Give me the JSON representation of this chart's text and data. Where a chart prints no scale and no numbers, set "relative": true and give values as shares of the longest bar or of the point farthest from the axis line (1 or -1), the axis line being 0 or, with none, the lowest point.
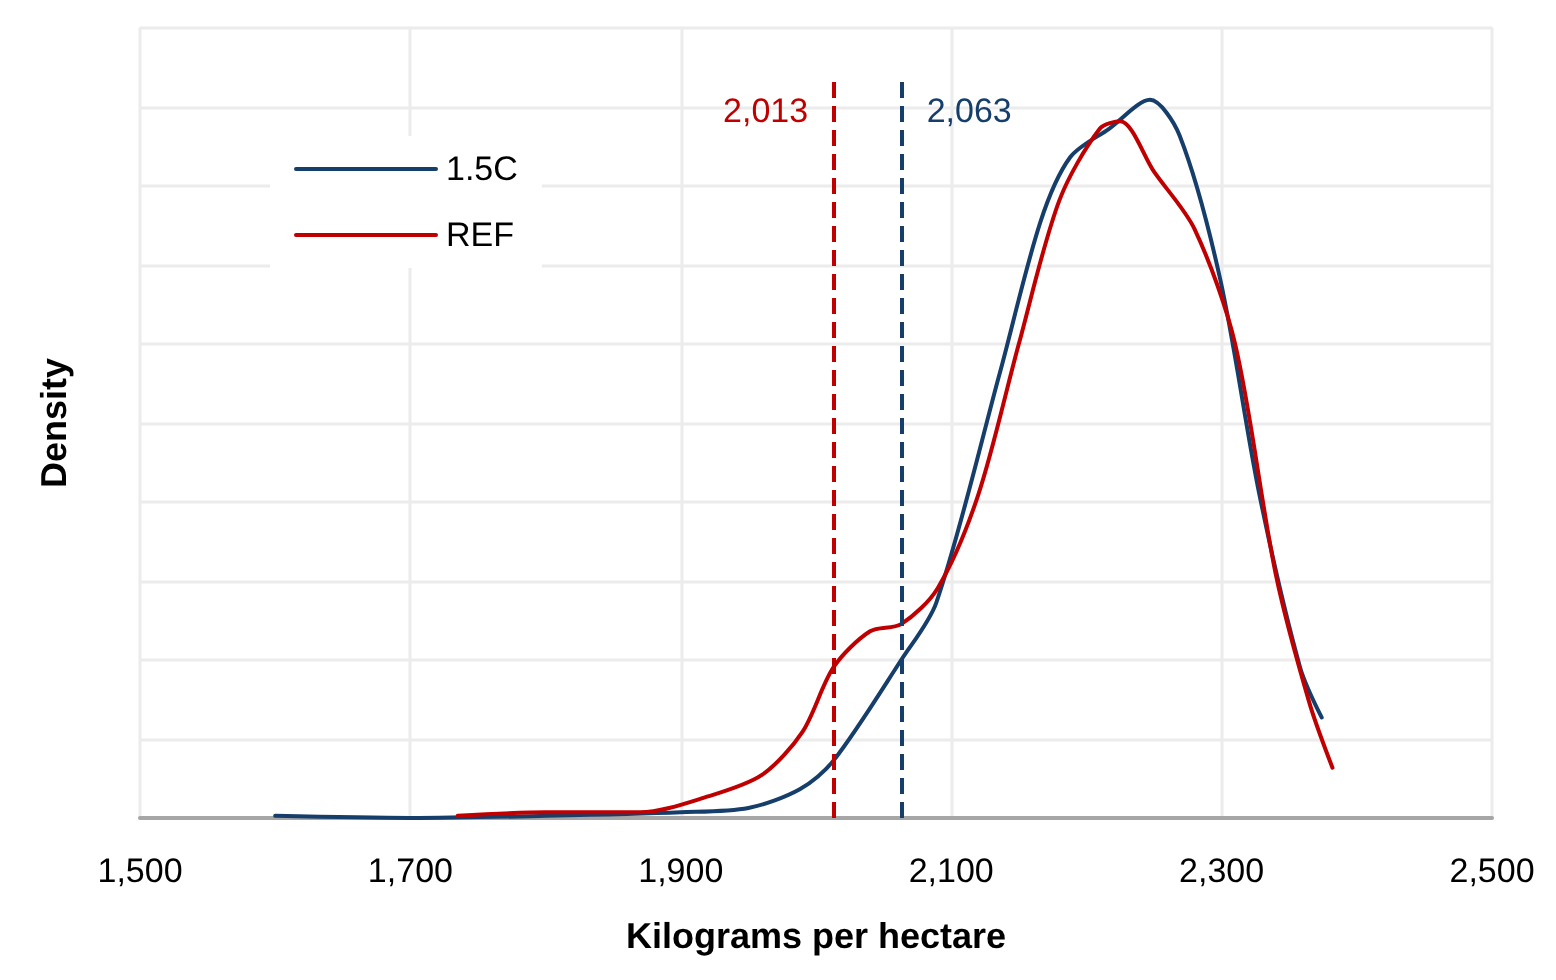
{
  "chart_data": {
    "type": "line",
    "xlabel": "Kilograms per hectare",
    "ylabel": "Density",
    "relative": true,
    "xlim": [
      1500,
      2500
    ],
    "xticks": [
      {
        "value": 1500,
        "label": "1,500"
      },
      {
        "value": 1700,
        "label": "1,700"
      },
      {
        "value": 1900,
        "label": "1,900"
      },
      {
        "value": 2100,
        "label": "2,100"
      },
      {
        "value": 2300,
        "label": "2,300"
      },
      {
        "value": 2500,
        "label": "2,500"
      }
    ],
    "grid": true,
    "legend": "top left",
    "marker": "none",
    "series": [
      {
        "name": "1.5C",
        "color": "#163e6b",
        "x": [
          1600,
          1700,
          1800,
          1900,
          1950,
          1988,
          2013,
          2063,
          2089,
          2136,
          2166,
          2188,
          2217,
          2247,
          2269,
          2299,
          2328,
          2358,
          2374
        ],
        "values": [
          0.003,
          0,
          0.003,
          0.008,
          0.014,
          0.04,
          0.08,
          0.22,
          0.3,
          0.62,
          0.83,
          0.92,
          0.96,
          1,
          0.95,
          0.75,
          0.45,
          0.21,
          0.14
        ]
      },
      {
        "name": "REF",
        "color": "#c00000",
        "x": [
          1735,
          1800,
          1870,
          1920,
          1960,
          1990,
          2013,
          2040,
          2063,
          2090,
          2120,
          2150,
          2180,
          2210,
          2225,
          2250,
          2280,
          2310,
          2340,
          2365,
          2382
        ],
        "values": [
          0.003,
          0.008,
          0.008,
          0.03,
          0.06,
          0.12,
          0.21,
          0.26,
          0.27,
          0.32,
          0.45,
          0.66,
          0.86,
          0.96,
          0.97,
          0.9,
          0.82,
          0.66,
          0.34,
          0.16,
          0.07
        ]
      }
    ],
    "ref_lines": [
      {
        "axis": "x",
        "value": 2013,
        "label": "2,013",
        "color": "#c00000",
        "line_style": "dashed"
      },
      {
        "axis": "x",
        "value": 2063,
        "label": "2,063",
        "color": "#163e6b",
        "line_style": "dashed"
      }
    ]
  }
}
